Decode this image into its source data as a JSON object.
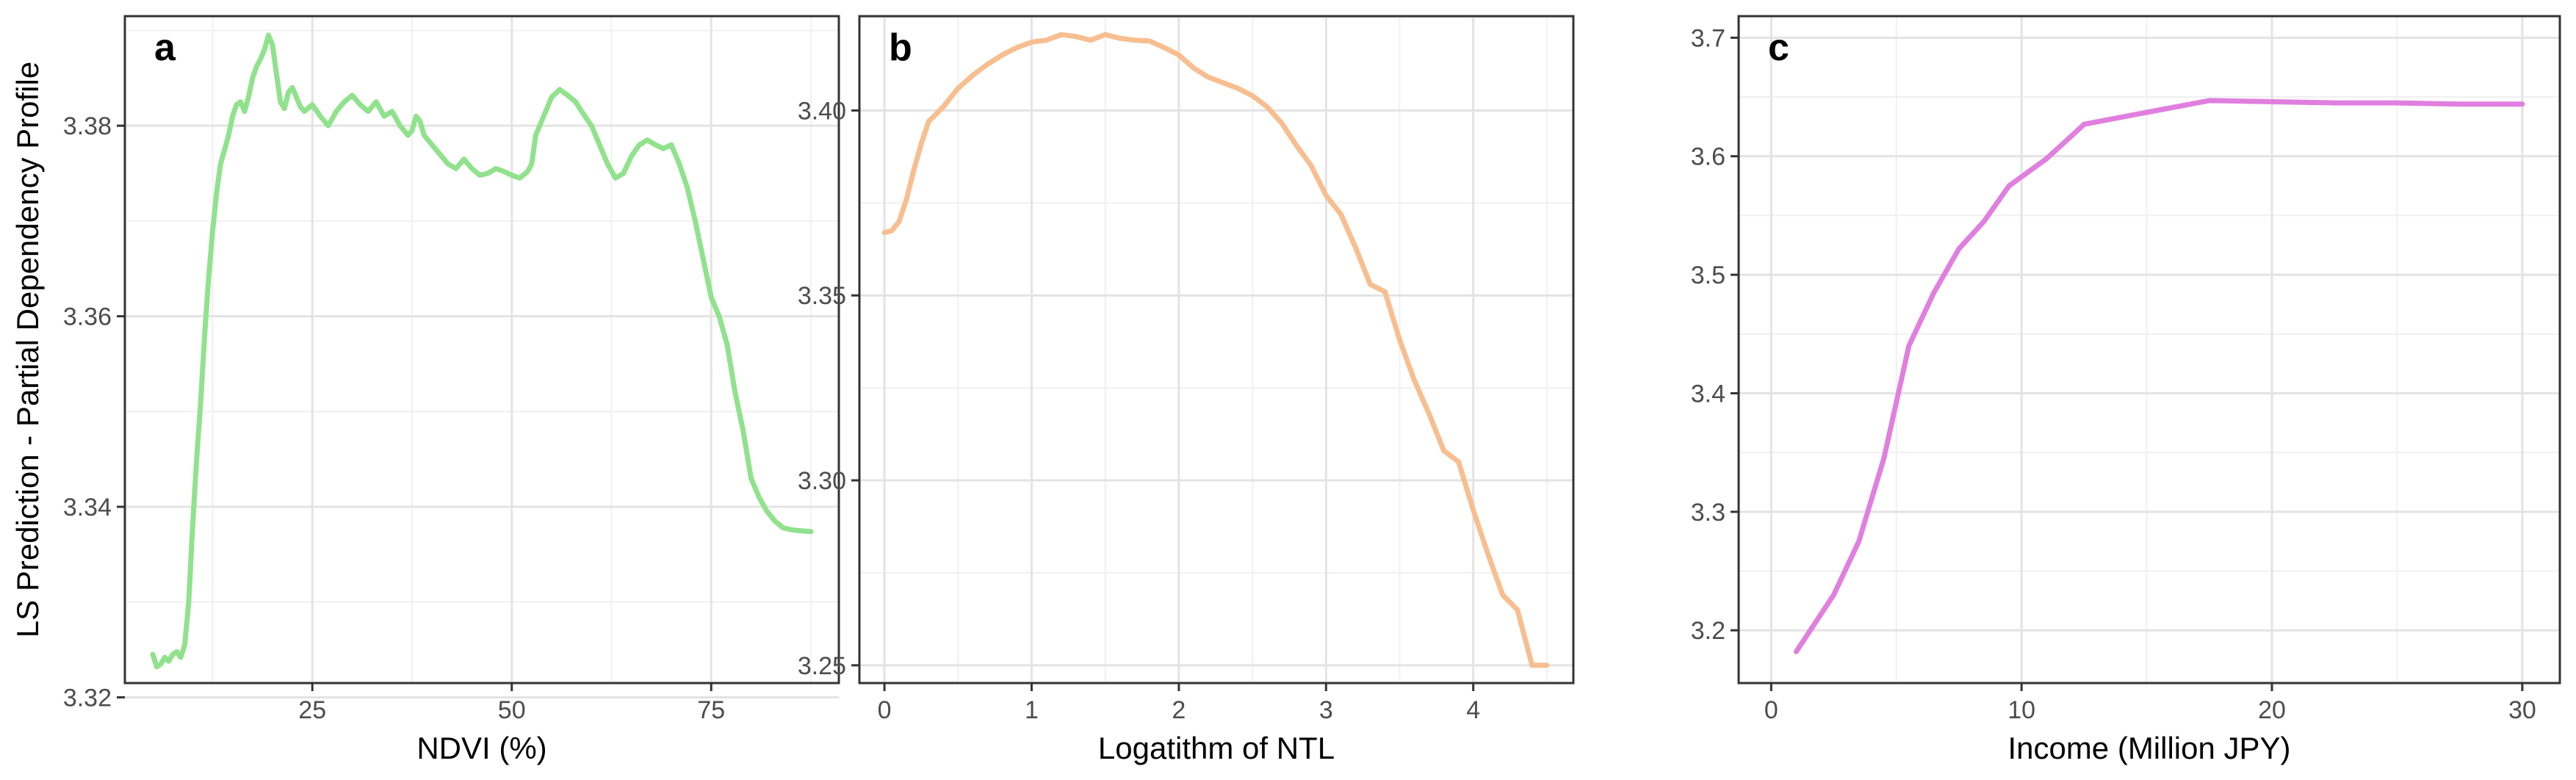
{
  "figure": {
    "ylabel": "LS Prediction - Partial Dependency Profile"
  },
  "chart_data": [
    {
      "type": "line",
      "panel_tag": "a",
      "xlabel": "NDVI (%)",
      "ylabel": "LS Prediction - Partial Dependency Profile",
      "xlim": [
        1.5,
        91
      ],
      "ylim": [
        3.3215,
        3.3915
      ],
      "xticks": [
        25,
        50,
        75
      ],
      "xtick_labels": [
        "25",
        "50",
        "75"
      ],
      "yticks": [
        3.32,
        3.34,
        3.36,
        3.38
      ],
      "ytick_labels": [
        "3.32",
        "3.34",
        "3.36",
        "3.38"
      ],
      "grid": true,
      "color": "#90e28c",
      "x": [
        5,
        5.5,
        6,
        6.5,
        7,
        7.5,
        8,
        8.5,
        9,
        9.5,
        10,
        10.5,
        11,
        11.5,
        12,
        12.5,
        13,
        13.5,
        14,
        14.5,
        15,
        15.5,
        16,
        16.5,
        17,
        17.5,
        18,
        18.5,
        19,
        19.5,
        20,
        20.5,
        21,
        21.5,
        22,
        22.5,
        23,
        23.5,
        24,
        25,
        26,
        27,
        28,
        29,
        30,
        31,
        32,
        33,
        34,
        35,
        36,
        37,
        37.5,
        38,
        38.5,
        39,
        40,
        41,
        42,
        43,
        44,
        45,
        46,
        47,
        48,
        49,
        50,
        51,
        52,
        52.5,
        53,
        54,
        55,
        56,
        57,
        58,
        59,
        60,
        61,
        62,
        63,
        64,
        65,
        66,
        67,
        68,
        69,
        70,
        71,
        72,
        73,
        74,
        75,
        76,
        77,
        78,
        79,
        80,
        81,
        82,
        83,
        84,
        85,
        86,
        87.5
      ],
      "y": [
        3.3245,
        3.3232,
        3.3235,
        3.3242,
        3.3238,
        3.3245,
        3.3248,
        3.3242,
        3.3255,
        3.33,
        3.338,
        3.345,
        3.351,
        3.358,
        3.364,
        3.369,
        3.373,
        3.376,
        3.3775,
        3.379,
        3.381,
        3.3822,
        3.3825,
        3.3815,
        3.383,
        3.385,
        3.3862,
        3.387,
        3.388,
        3.3895,
        3.3885,
        3.3855,
        3.3825,
        3.3818,
        3.3835,
        3.384,
        3.383,
        3.382,
        3.3815,
        3.3822,
        3.381,
        3.38,
        3.3815,
        3.3825,
        3.3832,
        3.3822,
        3.3815,
        3.3825,
        3.381,
        3.3815,
        3.38,
        3.379,
        3.3795,
        3.381,
        3.3805,
        3.379,
        3.378,
        3.377,
        3.376,
        3.3755,
        3.3765,
        3.3755,
        3.3748,
        3.375,
        3.3755,
        3.3752,
        3.3748,
        3.3745,
        3.3752,
        3.376,
        3.379,
        3.381,
        3.383,
        3.3838,
        3.3832,
        3.3825,
        3.3812,
        3.38,
        3.378,
        3.376,
        3.3745,
        3.375,
        3.3768,
        3.378,
        3.3785,
        3.378,
        3.3776,
        3.378,
        3.376,
        3.3735,
        3.37,
        3.366,
        3.362,
        3.36,
        3.357,
        3.352,
        3.348,
        3.343,
        3.341,
        3.3395,
        3.3385,
        3.3378,
        3.3376,
        3.3375,
        3.3374
      ]
    },
    {
      "type": "line",
      "panel_tag": "b",
      "xlabel": "Logatithm of NTL",
      "ylabel": "",
      "xlim": [
        -0.17,
        4.68
      ],
      "ylim": [
        3.2452,
        3.4255
      ],
      "xticks": [
        0,
        1,
        2,
        3,
        4
      ],
      "xtick_labels": [
        "0",
        "1",
        "2",
        "3",
        "4"
      ],
      "yticks": [
        3.25,
        3.3,
        3.35,
        3.4
      ],
      "ytick_labels": [
        "3.25",
        "3.30",
        "3.35",
        "3.40"
      ],
      "grid": true,
      "color": "#f7be90",
      "x": [
        0,
        0.05,
        0.1,
        0.15,
        0.2,
        0.25,
        0.3,
        0.35,
        0.4,
        0.5,
        0.6,
        0.7,
        0.8,
        0.9,
        1.0,
        1.1,
        1.2,
        1.3,
        1.4,
        1.5,
        1.6,
        1.7,
        1.8,
        1.9,
        2.0,
        2.1,
        2.2,
        2.3,
        2.4,
        2.5,
        2.6,
        2.7,
        2.8,
        2.9,
        3.0,
        3.1,
        3.2,
        3.3,
        3.4,
        3.5,
        3.6,
        3.7,
        3.8,
        3.9,
        4.0,
        4.1,
        4.2,
        4.3,
        4.4,
        4.5
      ],
      "y": [
        3.367,
        3.3675,
        3.37,
        3.376,
        3.384,
        3.391,
        3.397,
        3.399,
        3.401,
        3.406,
        3.4095,
        3.4125,
        3.415,
        3.417,
        3.4185,
        3.419,
        3.4205,
        3.42,
        3.419,
        3.4205,
        3.4195,
        3.419,
        3.4188,
        3.417,
        3.415,
        3.4115,
        3.409,
        3.4075,
        3.406,
        3.404,
        3.401,
        3.3965,
        3.3905,
        3.385,
        3.377,
        3.372,
        3.363,
        3.353,
        3.351,
        3.338,
        3.327,
        3.318,
        3.308,
        3.305,
        3.292,
        3.28,
        3.269,
        3.265,
        3.25,
        3.25
      ]
    },
    {
      "type": "line",
      "panel_tag": "c",
      "xlabel": "Income (Million JPY)",
      "ylabel": "",
      "xlim": [
        -1.3,
        31.5
      ],
      "ylim": [
        3.1555,
        3.7182
      ],
      "xticks": [
        0,
        10,
        20,
        30
      ],
      "xtick_labels": [
        "0",
        "10",
        "20",
        "30"
      ],
      "yticks": [
        3.2,
        3.3,
        3.4,
        3.5,
        3.6,
        3.7
      ],
      "ytick_labels": [
        "3.2",
        "3.3",
        "3.4",
        "3.5",
        "3.6",
        "3.7"
      ],
      "grid": true,
      "color": "#e07fdf",
      "x": [
        1,
        2.5,
        3.5,
        4.5,
        5.5,
        6.5,
        7.5,
        8.5,
        9.5,
        11,
        12.5,
        15,
        17.5,
        20,
        22.5,
        25,
        27.5,
        30
      ],
      "y": [
        3.182,
        3.23,
        3.275,
        3.345,
        3.44,
        3.485,
        3.522,
        3.545,
        3.575,
        3.598,
        3.627,
        3.637,
        3.647,
        3.646,
        3.645,
        3.645,
        3.644,
        3.644
      ]
    }
  ]
}
